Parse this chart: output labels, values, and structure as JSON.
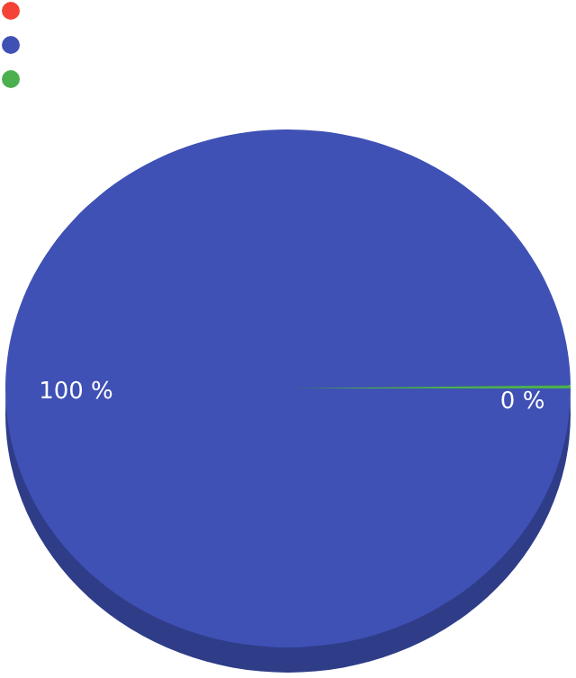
{
  "chart_data": {
    "type": "pie",
    "categories": [
      null,
      null,
      null
    ],
    "values": [
      0,
      99.8,
      0.2
    ],
    "colors": [
      "#f44336",
      "#3f51b5",
      "#4caf50"
    ],
    "value_labels": [
      null,
      "100 %",
      "0 %"
    ]
  }
}
